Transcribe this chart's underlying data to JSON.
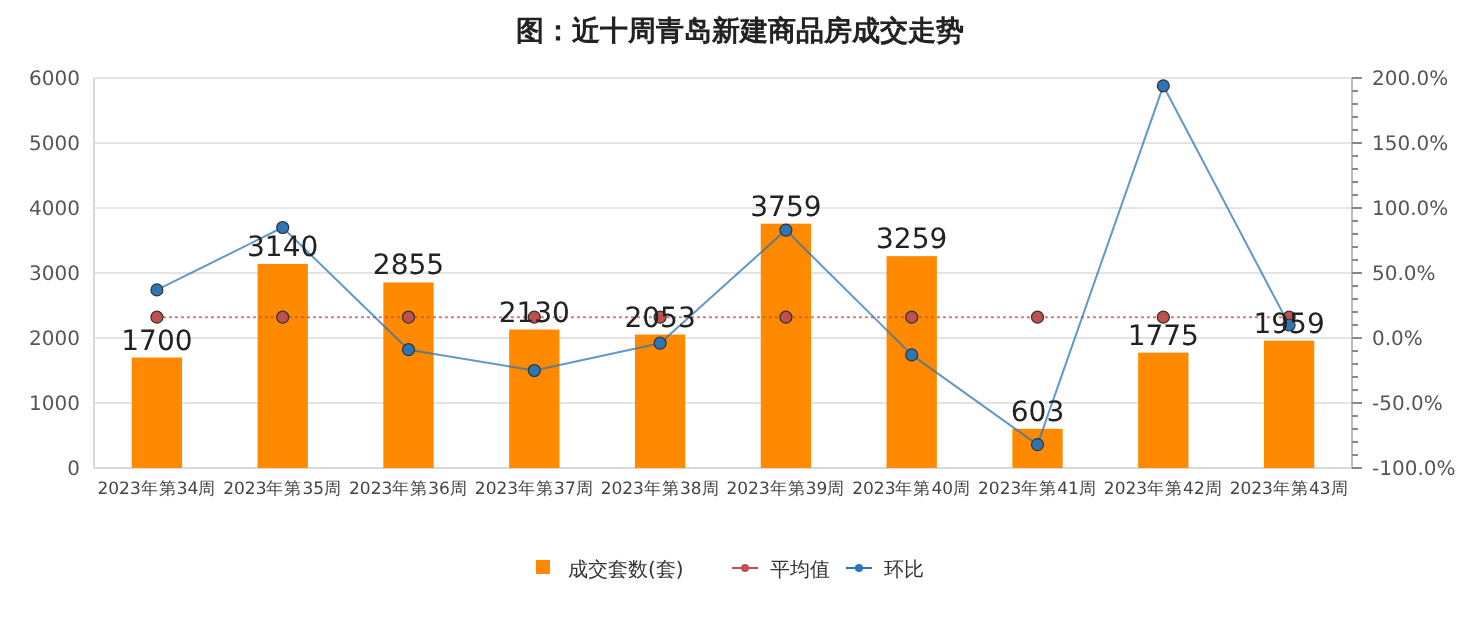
{
  "chart_data": {
    "type": "bar",
    "title": "图：近十周青岛新建商品房成交走势",
    "categories": [
      "2023年第34周",
      "2023年第35周",
      "2023年第36周",
      "2023年第37周",
      "2023年第38周",
      "2023年第39周",
      "2023年第40周",
      "2023年第41周",
      "2023年第42周",
      "2023年第43周"
    ],
    "series": [
      {
        "name": "成交套数(套)",
        "color": "#ff8a00",
        "values": [
          1700,
          3140,
          2855,
          2130,
          2053,
          3759,
          3259,
          603,
          1775,
          1959
        ],
        "value_labels": [
          "1700",
          "3140",
          "2855",
          "2130",
          "2053",
          "3759",
          "3259",
          "603",
          "1775",
          "1959"
        ]
      },
      {
        "name": "平均值",
        "type": "line",
        "color": "#c0504d",
        "line_style": "dotted",
        "marker": "circle",
        "values": [
          2320,
          2320,
          2320,
          2320,
          2320,
          2320,
          2320,
          2320,
          2320,
          2320
        ]
      },
      {
        "name": "环比",
        "type": "line",
        "axis": "y2",
        "color": "#2e75b6",
        "line_style": "solid",
        "marker": "circle",
        "values": [
          37,
          85,
          -9,
          -25,
          -4,
          83,
          -13,
          -82,
          194,
          10
        ]
      }
    ],
    "ylim": [
      0,
      6000
    ],
    "yticks": [
      0,
      1000,
      2000,
      3000,
      4000,
      5000,
      6000
    ],
    "y2lim": [
      -100,
      200
    ],
    "y2ticks": [
      {
        "value": -100,
        "label": "-100.0%"
      },
      {
        "value": -50,
        "label": "-50.0%"
      },
      {
        "value": 0,
        "label": "0.0%"
      },
      {
        "value": 50,
        "label": "50.0%"
      },
      {
        "value": 100,
        "label": "100.0%"
      },
      {
        "value": 150,
        "label": "150.0%"
      },
      {
        "value": 200,
        "label": "200.0%"
      }
    ],
    "grid": "y",
    "legend": "bottom"
  }
}
